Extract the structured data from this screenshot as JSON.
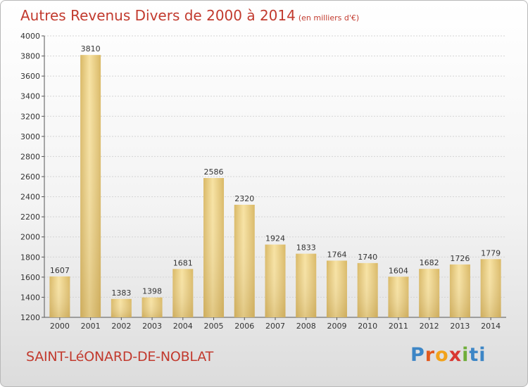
{
  "title": "Autres Revenus Divers de 2000 à 2014",
  "unit": "(en milliers d'€)",
  "commune": "SAINT-LéONARD-DE-NOBLAT",
  "logo": [
    "P",
    "r",
    "o",
    "x",
    "i",
    "t",
    "i"
  ],
  "colors": {
    "title": "#c23a2e",
    "bar_light": "#f7e2a2",
    "bar_dark": "#d9b865",
    "logo": [
      "#3d86c6",
      "#e2591e",
      "#f2a21a",
      "#d93732",
      "#6fae3a",
      "#3d86c6",
      "#3d86c6"
    ]
  },
  "chart_data": {
    "type": "bar",
    "categories": [
      "2000",
      "2001",
      "2002",
      "2003",
      "2004",
      "2005",
      "2006",
      "2007",
      "2008",
      "2009",
      "2010",
      "2011",
      "2012",
      "2013",
      "2014"
    ],
    "values": [
      1607,
      3810,
      1383,
      1398,
      1681,
      2586,
      2320,
      1924,
      1833,
      1764,
      1740,
      1604,
      1682,
      1726,
      1779
    ],
    "ylim": [
      1200,
      4000
    ],
    "yticks": [
      1200,
      1400,
      1600,
      1800,
      2000,
      2200,
      2400,
      2600,
      2800,
      3000,
      3200,
      3400,
      3600,
      3800,
      4000
    ],
    "grid": true,
    "data_labels": true
  }
}
